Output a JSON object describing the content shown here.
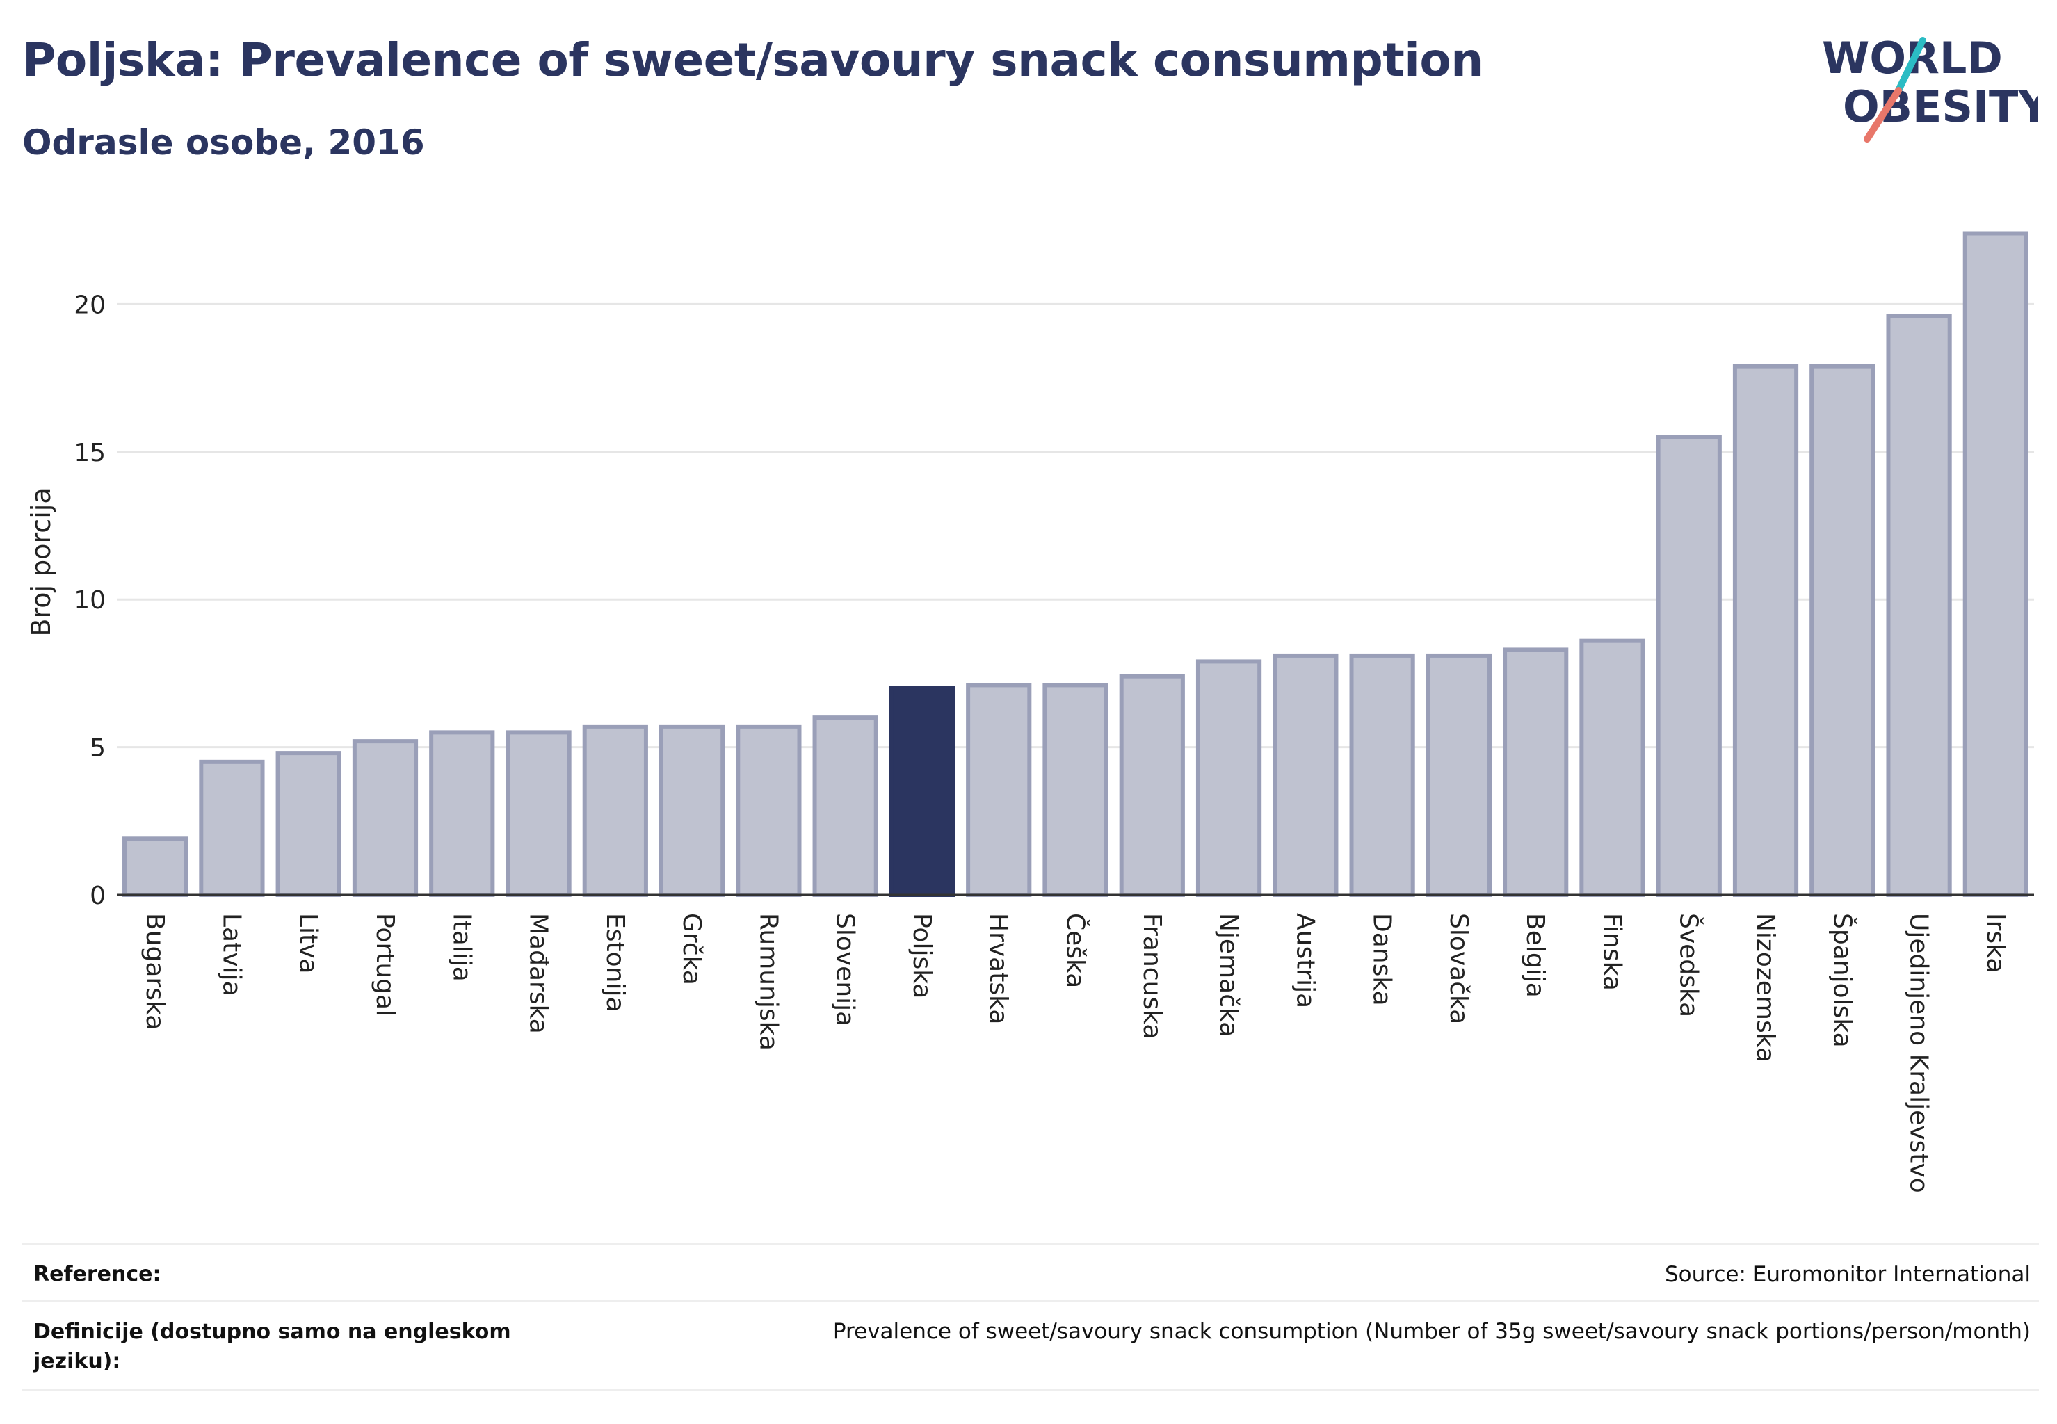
{
  "header": {
    "title": "Poljska: Prevalence of sweet/savoury snack consumption",
    "subtitle": "Odrasle osobe, 2016"
  },
  "logo": {
    "line1": "WORLD",
    "line2": "OBESITY"
  },
  "colors": {
    "highlight": "#2b3560",
    "bar": "#bfc2d0",
    "bar_stroke": "#9a9fb8",
    "accent_teal": "#2bbcc4",
    "accent_coral": "#e8776a"
  },
  "chart_data": {
    "type": "bar",
    "title": "Poljska: Prevalence of sweet/savoury snack consumption",
    "subtitle": "Odrasle osobe, 2016",
    "xlabel": "",
    "ylabel": "Broj porcija",
    "ylim": [
      0,
      23
    ],
    "yticks": [
      0,
      5,
      10,
      15,
      20
    ],
    "grid": true,
    "highlight": "Poljska",
    "categories": [
      "Bugarska",
      "Latvija",
      "Litva",
      "Portugal",
      "Italija",
      "Mađarska",
      "Estonija",
      "Grčka",
      "Rumunjska",
      "Slovenija",
      "Poljska",
      "Hrvatska",
      "Češka",
      "Francuska",
      "Njemačka",
      "Austrija",
      "Danska",
      "Slovačka",
      "Belgija",
      "Finska",
      "Švedska",
      "Nizozemska",
      "Španjolska",
      "Ujedinjeno Kraljevstvo",
      "Irska"
    ],
    "values": [
      1.9,
      4.5,
      4.8,
      5.2,
      5.5,
      5.5,
      5.7,
      5.7,
      5.7,
      6.0,
      7.0,
      7.1,
      7.1,
      7.4,
      7.9,
      8.1,
      8.1,
      8.1,
      8.3,
      8.6,
      15.5,
      17.9,
      17.9,
      19.6,
      22.4
    ]
  },
  "footer": {
    "reference_label": "Reference:",
    "reference_value": "Source: Euromonitor International",
    "definition_label": "Definicije (dostupno samo na engleskom jeziku):",
    "definition_value": "Prevalence of sweet/savoury snack consumption (Number of 35g sweet/savoury snack portions/person/month)"
  }
}
